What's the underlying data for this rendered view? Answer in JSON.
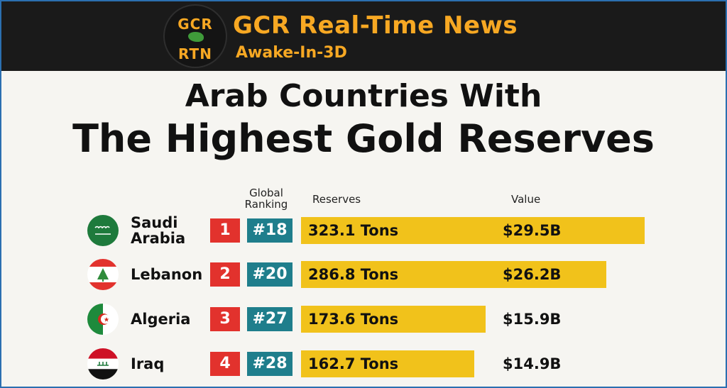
{
  "banner": {
    "logo_line1": "GCR",
    "logo_line2": "RTN",
    "title": "GCR Real-Time News",
    "subtitle": "Awake-In-3D"
  },
  "headers": {
    "global_ranking": "Global Ranking",
    "reserves": "Reserves",
    "value": "Value"
  },
  "colors": {
    "rank_badge": "#e2322d",
    "global_rank_badge": "#1f7e8c",
    "bar": "#f1c21b",
    "banner_text": "#f7a823"
  },
  "chart_data": {
    "type": "bar",
    "title": "Arab Countries With",
    "subtitle": "The Highest Gold Reserves",
    "categories": [
      "Saudi Arabia",
      "Lebanon",
      "Algeria",
      "Iraq"
    ],
    "rank": [
      "1",
      "2",
      "3",
      "4"
    ],
    "global_ranking": [
      "#18",
      "#20",
      "#27",
      "#28"
    ],
    "values": [
      323.1,
      286.8,
      173.6,
      162.7
    ],
    "value_labels": [
      "323.1 Tons",
      "286.8 Tons",
      "173.6 Tons",
      "162.7 Tons"
    ],
    "usd_values": [
      "$29.5B",
      "$26.2B",
      "$15.9B",
      "$14.9B"
    ],
    "flags": [
      "saudi-flag-icon",
      "lebanon-flag-icon",
      "algeria-flag-icon",
      "iraq-flag-icon"
    ],
    "xlim": [
      0,
      323.1
    ],
    "grid": false
  }
}
